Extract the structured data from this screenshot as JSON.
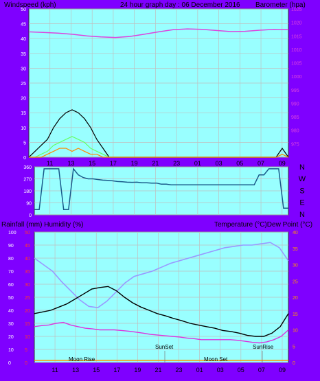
{
  "chart_data": [
    {
      "type": "line",
      "title": "24 hour graph day : 06 December 2016",
      "ylabel": "Windspeed (kph)",
      "y2label": "Barometer (hpa)",
      "ylim": [
        0,
        50
      ],
      "y2lim": [
        970,
        1025
      ],
      "yticks": [
        0,
        5,
        10,
        15,
        20,
        25,
        30,
        35,
        40,
        45,
        50
      ],
      "y2ticks": [
        975,
        980,
        985,
        990,
        995,
        1000,
        1005,
        1010,
        1015,
        1020,
        1025
      ],
      "xticks": [
        "11",
        "13",
        "15",
        "17",
        "19",
        "21",
        "23",
        "01",
        "03",
        "05",
        "07",
        "09"
      ],
      "grid": true,
      "background": "#99ffff",
      "series": [
        {
          "color": "#dd44dd",
          "values": [
            1016.5,
            1016.3,
            1016.0,
            1015.6,
            1015.0,
            1014.6,
            1014.4,
            1014.8,
            1015.6,
            1016.5,
            1017.3,
            1017.6,
            1017.4,
            1017.0,
            1016.6,
            1016.7,
            1017.1,
            1017.4,
            1017.3
          ]
        },
        {
          "color": "#000000",
          "values": [
            0,
            2,
            4,
            6,
            10,
            13,
            15,
            16,
            15,
            13,
            10,
            6,
            3,
            0,
            0,
            0,
            0,
            0,
            0,
            0,
            0,
            0,
            0,
            0,
            0,
            0,
            0,
            0,
            0,
            0,
            0,
            0,
            0,
            0,
            0,
            0,
            0,
            0,
            0,
            0,
            0,
            3,
            0
          ]
        },
        {
          "color": "#66ff66",
          "values": [
            0,
            0,
            1,
            2,
            4,
            5,
            6,
            7,
            6,
            5,
            3,
            2,
            1,
            0,
            0,
            0,
            0,
            0,
            0,
            0,
            0,
            0,
            0,
            0,
            0,
            0,
            0,
            0,
            0,
            0,
            0,
            0,
            0,
            0,
            0,
            0,
            0,
            0,
            0,
            0,
            0,
            1,
            0
          ]
        },
        {
          "color": "#ff8800",
          "values": [
            0,
            0,
            0,
            1,
            2,
            3,
            3,
            2,
            3,
            2,
            1,
            1,
            0,
            0,
            0,
            0,
            0,
            0,
            0,
            0,
            0,
            0,
            0,
            0,
            0,
            0,
            0,
            0,
            0,
            0,
            0,
            0,
            0,
            0,
            0,
            0,
            0,
            0,
            0,
            0,
            0,
            1,
            0
          ]
        }
      ]
    },
    {
      "type": "line",
      "ylabel": "N W S E N",
      "ylim": [
        0,
        360
      ],
      "yticks": [
        0,
        90,
        180,
        270,
        360
      ],
      "compass": [
        "N",
        "W",
        "S",
        "E",
        "N"
      ],
      "series": [
        {
          "color": "#1a5a8a",
          "values": [
            40,
            40,
            345,
            345,
            345,
            345,
            40,
            40,
            345,
            300,
            280,
            270,
            270,
            265,
            260,
            258,
            255,
            250,
            248,
            245,
            244,
            245,
            240,
            240,
            238,
            238,
            230,
            230,
            225,
            225,
            225,
            225,
            225,
            225,
            225,
            225,
            225,
            225,
            225,
            225,
            225,
            225,
            225,
            225,
            225,
            225,
            300,
            300,
            345,
            345,
            345,
            50,
            50
          ]
        }
      ]
    },
    {
      "type": "line",
      "ylabel": "Rainfall (mm)  Humidity (%)",
      "y2label": "Temperature (°C)Dew Point (°C)",
      "ylim": [
        0,
        100
      ],
      "y2lim": [
        0,
        40
      ],
      "y3lim": [
        0,
        50
      ],
      "yticks": [
        0,
        10,
        20,
        30,
        40,
        50,
        60,
        70,
        80,
        90,
        100
      ],
      "y2ticks": [
        0,
        5,
        10,
        15,
        20,
        25,
        30,
        35,
        40
      ],
      "y3ticks": [
        0,
        5,
        10,
        15,
        20,
        25,
        30,
        35,
        40,
        45,
        50
      ],
      "xticks": [
        "11",
        "13",
        "15",
        "17",
        "19",
        "21",
        "23",
        "01",
        "03",
        "05",
        "07",
        "09"
      ],
      "annotations": [
        "Moon Rise",
        "SunSet",
        "Moon Set",
        "SunRise"
      ],
      "series": [
        {
          "color": "#9999ff",
          "values": [
            80,
            75,
            70,
            62,
            55,
            48,
            43,
            42,
            47,
            54,
            61,
            66,
            68,
            70,
            73,
            76,
            78,
            80,
            82,
            84,
            86,
            88,
            89,
            90,
            90,
            91,
            92,
            88,
            78
          ]
        },
        {
          "color": "#000000",
          "values": [
            15,
            15.5,
            16,
            17,
            18,
            19.5,
            21,
            22.5,
            23,
            23.3,
            22,
            20,
            18.3,
            17,
            16,
            15,
            14.3,
            13.5,
            12.8,
            12,
            11.5,
            11,
            10.5,
            9.8,
            9.5,
            9,
            8.3,
            8,
            8,
            9,
            11,
            15
          ]
        },
        {
          "color": "#dd33dd",
          "values": [
            11,
            11.3,
            11.5,
            12,
            12.3,
            11.5,
            11,
            10.5,
            10.3,
            10,
            10,
            10,
            9.8,
            9.6,
            9.3,
            9,
            8.6,
            8.4,
            8.2,
            8,
            7.8,
            7.5,
            7.3,
            7,
            7,
            7,
            7,
            7,
            6.8,
            6.5,
            6.2,
            6,
            6.3,
            7,
            8,
            10
          ]
        }
      ]
    }
  ]
}
